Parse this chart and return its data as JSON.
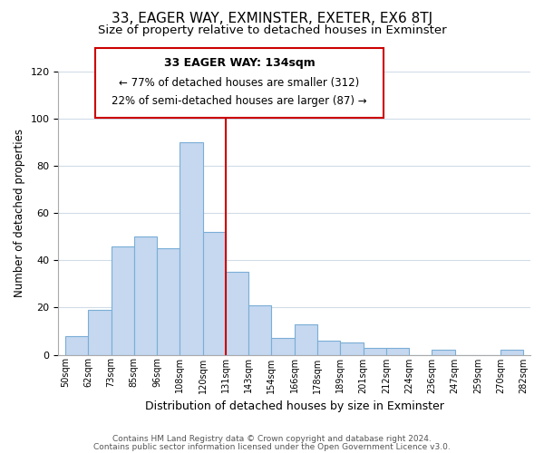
{
  "title": "33, EAGER WAY, EXMINSTER, EXETER, EX6 8TJ",
  "subtitle": "Size of property relative to detached houses in Exminster",
  "xlabel": "Distribution of detached houses by size in Exminster",
  "ylabel": "Number of detached properties",
  "bin_labels": [
    "50sqm",
    "62sqm",
    "73sqm",
    "85sqm",
    "96sqm",
    "108sqm",
    "120sqm",
    "131sqm",
    "143sqm",
    "154sqm",
    "166sqm",
    "178sqm",
    "189sqm",
    "201sqm",
    "212sqm",
    "224sqm",
    "236sqm",
    "247sqm",
    "259sqm",
    "270sqm",
    "282sqm"
  ],
  "bar_heights": [
    8,
    19,
    46,
    50,
    45,
    90,
    52,
    35,
    21,
    7,
    13,
    6,
    5,
    3,
    3,
    0,
    2,
    0,
    0,
    2
  ],
  "bar_color": "#c5d8f0",
  "bar_edge_color": "#7aaed6",
  "vline_x": 7,
  "vline_color": "#cc0000",
  "annotation_line1": "33 EAGER WAY: 134sqm",
  "annotation_line2": "← 77% of detached houses are smaller (312)",
  "annotation_line3": "22% of semi-detached houses are larger (87) →",
  "annotation_box_color": "#ffffff",
  "annotation_box_edge": "#cc0000",
  "ylim": [
    0,
    120
  ],
  "yticks": [
    0,
    20,
    40,
    60,
    80,
    100,
    120
  ],
  "footer_line1": "Contains HM Land Registry data © Crown copyright and database right 2024.",
  "footer_line2": "Contains public sector information licensed under the Open Government Licence v3.0.",
  "background_color": "#ffffff",
  "grid_color": "#d0dce8"
}
